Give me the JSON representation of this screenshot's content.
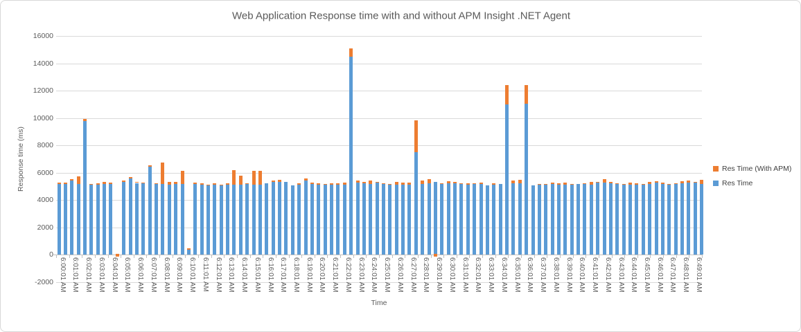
{
  "chart_data": {
    "type": "bar",
    "variant": "stacked",
    "title": "Web Application Response time with and without APM Insight .NET Agent",
    "xlabel": "Time",
    "ylabel": "Response time  (ms)",
    "ylim": [
      -2000,
      16000
    ],
    "ytick_step": 2000,
    "grid": true,
    "legend_position": "right",
    "x_tick_label_every": 2,
    "colors": {
      "res_time": "#5B9BD5",
      "res_time_with_apm": "#ED7D31",
      "gridline": "#D9D9D9",
      "axis": "#BFBFBF",
      "text": "#595959",
      "legend_text": "#404040",
      "border": "#D7D7D7"
    },
    "series": [
      {
        "name": "Res Time (With APM)",
        "color_key": "res_time_with_apm",
        "role": "apm_extra"
      },
      {
        "name": "Res Time",
        "color_key": "res_time",
        "role": "base"
      }
    ],
    "points_format": [
      "time",
      "res_time_ms",
      "apm_extra_ms"
    ],
    "points": [
      [
        "6:00:01 AM",
        5140,
        135
      ],
      [
        "6:00:31 AM",
        5175,
        70
      ],
      [
        "6:01:01 AM",
        5400,
        100
      ],
      [
        "6:01:31 AM",
        5140,
        600
      ],
      [
        "6:02:01 AM",
        9780,
        130
      ],
      [
        "6:02:31 AM",
        5090,
        90
      ],
      [
        "6:03:01 AM",
        5105,
        85
      ],
      [
        "6:03:31 AM",
        5175,
        150
      ],
      [
        "6:04:01 AM",
        5160,
        115
      ],
      [
        "6:04:31 AM",
        0,
        -150
      ],
      [
        "6:05:01 AM",
        5325,
        85
      ],
      [
        "6:05:31 AM",
        5580,
        100
      ],
      [
        "6:06:01 AM",
        5240,
        90
      ],
      [
        "6:06:31 AM",
        5205,
        65
      ],
      [
        "6:07:01 AM",
        6450,
        80
      ],
      [
        "6:07:31 AM",
        5150,
        90
      ],
      [
        "6:08:01 AM",
        5150,
        1600
      ],
      [
        "6:08:31 AM",
        5100,
        230
      ],
      [
        "6:09:01 AM",
        5150,
        150
      ],
      [
        "6:09:31 AM",
        5150,
        1000
      ],
      [
        "6:10:01 AM",
        350,
        90
      ],
      [
        "6:10:31 AM",
        5150,
        110
      ],
      [
        "6:11:01 AM",
        5110,
        90
      ],
      [
        "6:11:31 AM",
        5060,
        60
      ],
      [
        "6:12:01 AM",
        5110,
        100
      ],
      [
        "6:12:31 AM",
        5070,
        60
      ],
      [
        "6:13:01 AM",
        5100,
        110
      ],
      [
        "6:13:31 AM",
        5100,
        1060
      ],
      [
        "6:14:01 AM",
        5100,
        690
      ],
      [
        "6:14:31 AM",
        5160,
        50
      ],
      [
        "6:15:01 AM",
        5100,
        1050
      ],
      [
        "6:15:31 AM",
        5100,
        1050
      ],
      [
        "6:16:01 AM",
        5200,
        0
      ],
      [
        "6:16:31 AM",
        5330,
        80
      ],
      [
        "6:17:01 AM",
        5330,
        120
      ],
      [
        "6:17:31 AM",
        5300,
        0
      ],
      [
        "6:18:01 AM",
        5070,
        0
      ],
      [
        "6:18:31 AM",
        5110,
        80
      ],
      [
        "6:19:01 AM",
        5400,
        150
      ],
      [
        "6:19:31 AM",
        5150,
        100
      ],
      [
        "6:20:01 AM",
        5110,
        120
      ],
      [
        "6:20:31 AM",
        5100,
        50
      ],
      [
        "6:21:01 AM",
        5100,
        120
      ],
      [
        "6:21:31 AM",
        5100,
        100
      ],
      [
        "6:22:01 AM",
        5110,
        150
      ],
      [
        "6:22:31 AM",
        14500,
        600
      ],
      [
        "6:23:01 AM",
        5250,
        150
      ],
      [
        "6:23:31 AM",
        5200,
        100
      ],
      [
        "6:24:01 AM",
        5150,
        260
      ],
      [
        "6:24:31 AM",
        5250,
        60
      ],
      [
        "6:25:01 AM",
        5150,
        60
      ],
      [
        "6:25:31 AM",
        5100,
        80
      ],
      [
        "6:26:01 AM",
        5100,
        200
      ],
      [
        "6:26:31 AM",
        5100,
        150
      ],
      [
        "6:27:01 AM",
        5100,
        150
      ],
      [
        "6:27:31 AM",
        7500,
        2300
      ],
      [
        "6:28:01 AM",
        5150,
        260
      ],
      [
        "6:28:31 AM",
        5240,
        300
      ],
      [
        "6:29:01 AM",
        5330,
        -150
      ],
      [
        "6:29:31 AM",
        5150,
        80
      ],
      [
        "6:30:01 AM",
        5200,
        160
      ],
      [
        "6:30:31 AM",
        5200,
        110
      ],
      [
        "6:31:01 AM",
        5150,
        60
      ],
      [
        "6:31:31 AM",
        5100,
        120
      ],
      [
        "6:32:01 AM",
        5150,
        60
      ],
      [
        "6:32:31 AM",
        5150,
        120
      ],
      [
        "6:33:01 AM",
        5080,
        0
      ],
      [
        "6:33:31 AM",
        5100,
        100
      ],
      [
        "6:34:01 AM",
        5150,
        0
      ],
      [
        "6:34:31 AM",
        11000,
        1400
      ],
      [
        "6:35:01 AM",
        5200,
        210
      ],
      [
        "6:35:31 AM",
        5200,
        250
      ],
      [
        "6:36:01 AM",
        11050,
        1350
      ],
      [
        "6:36:31 AM",
        5080,
        0
      ],
      [
        "6:37:01 AM",
        5100,
        60
      ],
      [
        "6:37:31 AM",
        5100,
        80
      ],
      [
        "6:38:01 AM",
        5150,
        110
      ],
      [
        "6:38:31 AM",
        5110,
        80
      ],
      [
        "6:39:01 AM",
        5100,
        190
      ],
      [
        "6:39:31 AM",
        5100,
        80
      ],
      [
        "6:40:01 AM",
        5180,
        0
      ],
      [
        "6:40:31 AM",
        5150,
        60
      ],
      [
        "6:41:01 AM",
        5100,
        200
      ],
      [
        "6:41:31 AM",
        5250,
        60
      ],
      [
        "6:42:01 AM",
        5250,
        260
      ],
      [
        "6:42:31 AM",
        5200,
        110
      ],
      [
        "6:43:01 AM",
        5150,
        60
      ],
      [
        "6:43:31 AM",
        5100,
        80
      ],
      [
        "6:44:01 AM",
        5100,
        150
      ],
      [
        "6:44:31 AM",
        5110,
        100
      ],
      [
        "6:45:01 AM",
        5100,
        60
      ],
      [
        "6:45:31 AM",
        5150,
        160
      ],
      [
        "6:46:01 AM",
        5250,
        110
      ],
      [
        "6:46:31 AM",
        5150,
        100
      ],
      [
        "6:47:01 AM",
        5100,
        80
      ],
      [
        "6:47:31 AM",
        5150,
        60
      ],
      [
        "6:48:01 AM",
        5200,
        160
      ],
      [
        "6:48:31 AM",
        5250,
        160
      ],
      [
        "6:49:01 AM",
        5250,
        60
      ],
      [
        "6:49:31 AM",
        5150,
        310
      ]
    ]
  }
}
